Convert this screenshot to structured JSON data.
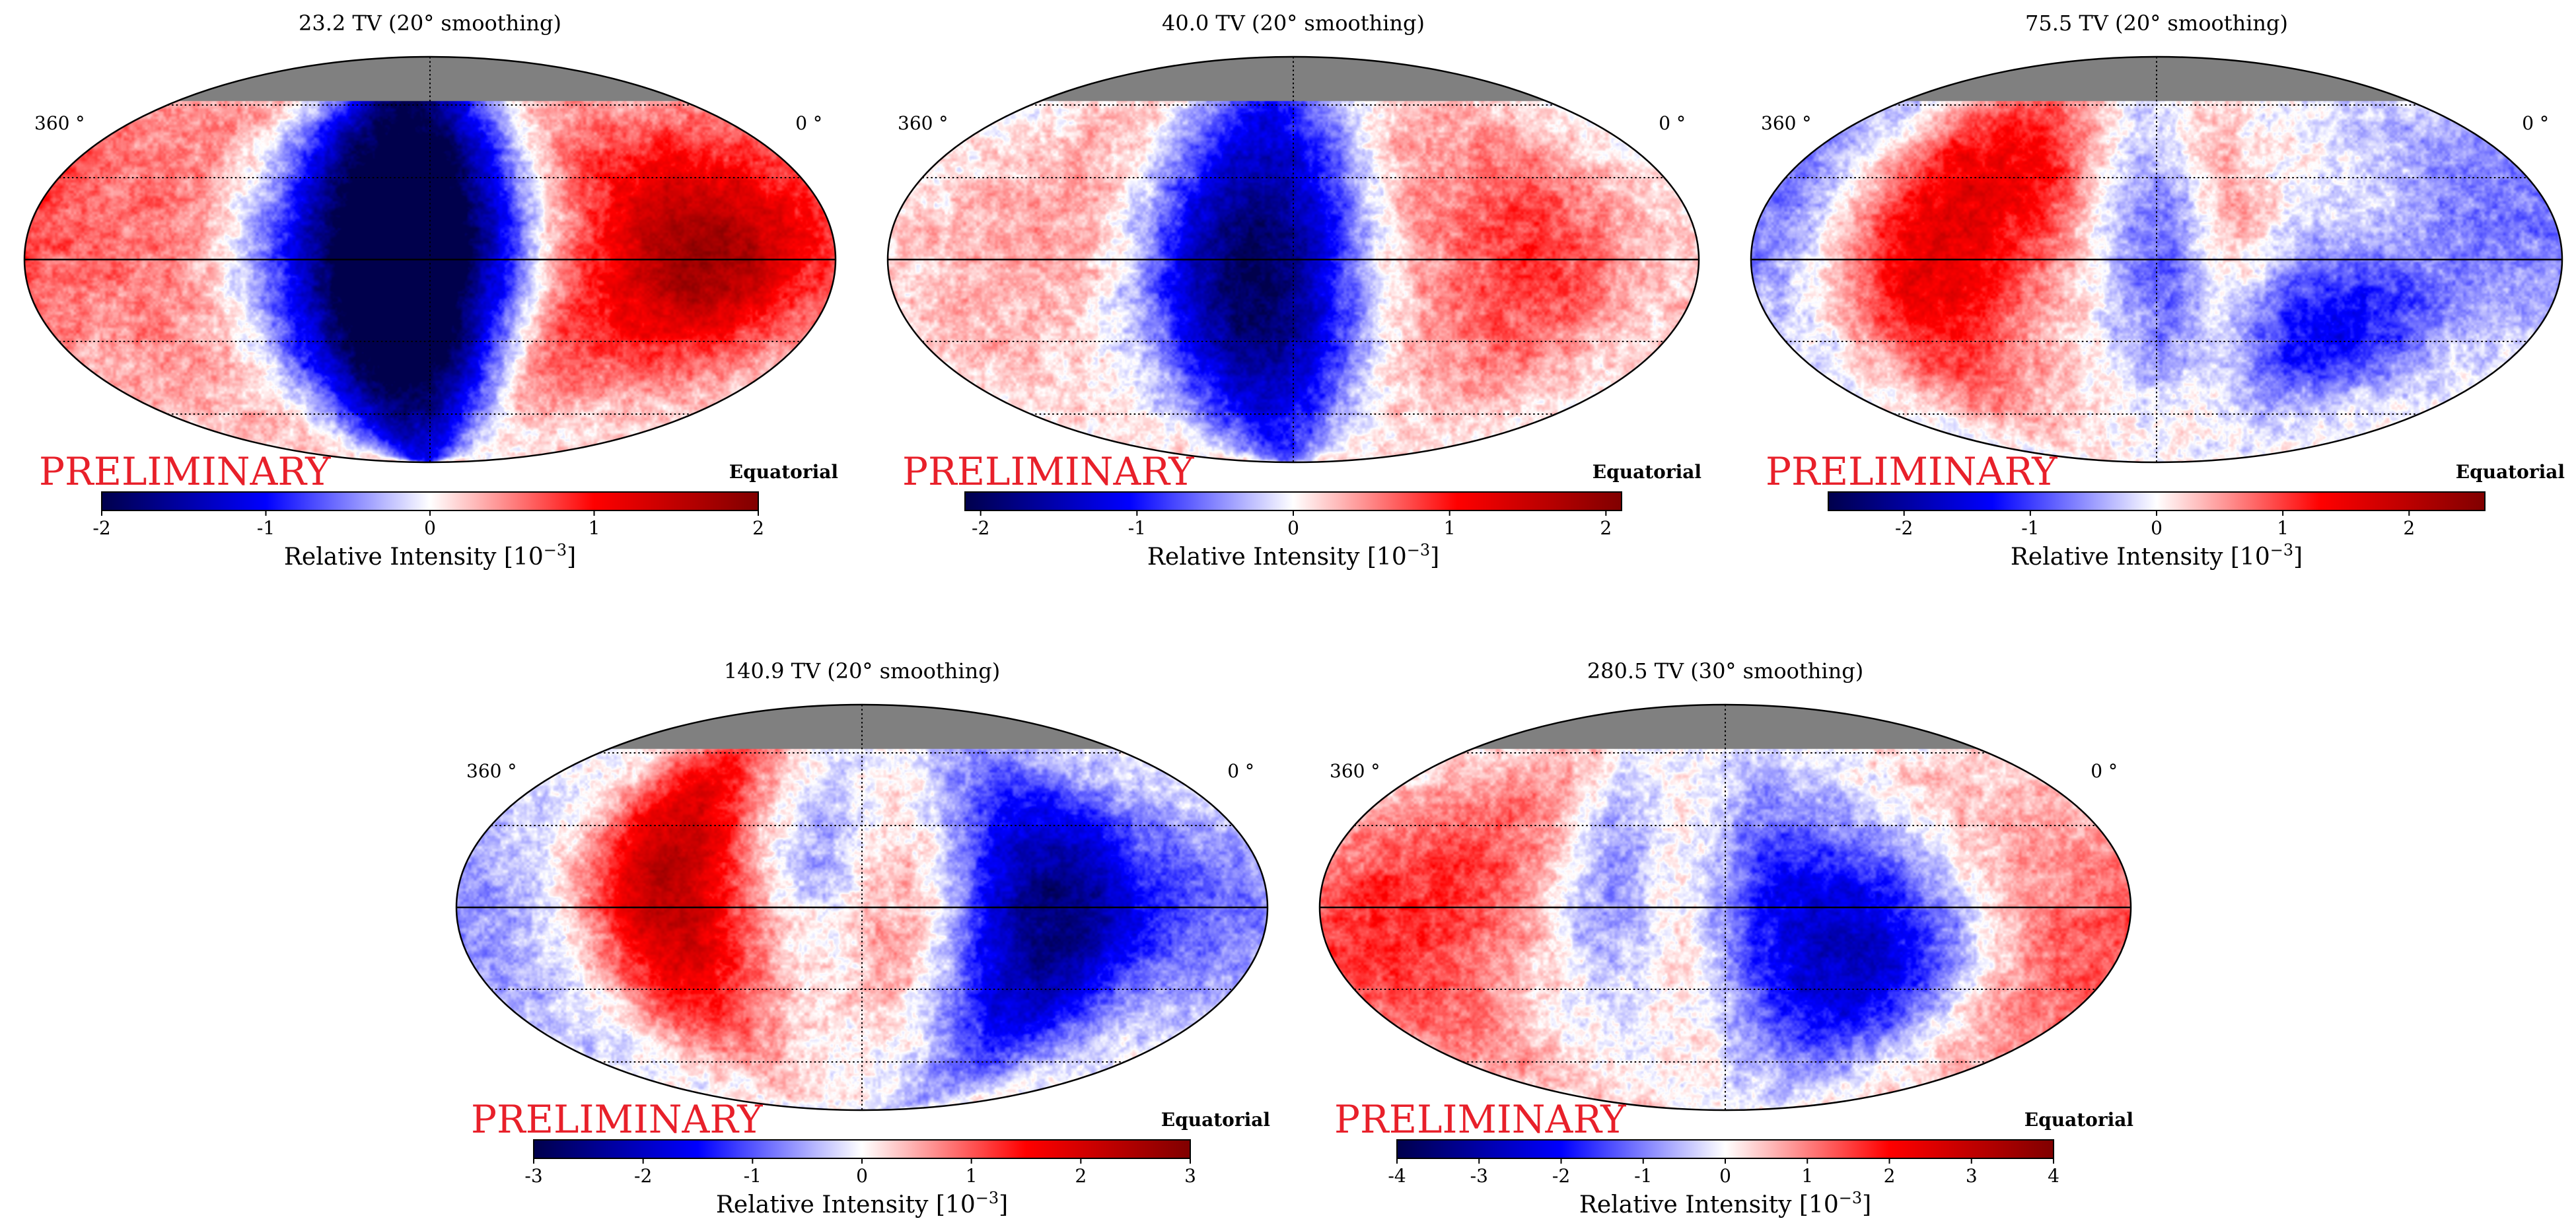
{
  "figure": {
    "watermark": "PRELIMINARY",
    "watermark_color": "#e8202a",
    "colorbar_label_prefix": "Relative Intensity [10",
    "colorbar_label_exp": "−3",
    "colorbar_label_suffix": "]",
    "colormap": [
      "#00004c",
      "#0000ff",
      "#ffffff",
      "#ff0000",
      "#800000"
    ],
    "masked_color": "#808080"
  },
  "chart_data": [
    {
      "type": "heatmap",
      "projection": "mollweide",
      "title": "23.2 TV (20° smoothing)",
      "coord_label": "Equatorial",
      "lon_left_label": "360 °",
      "lon_right_label": "0 °",
      "vmin": -2,
      "vmax": 2,
      "ticks": [
        "-2",
        "-1",
        "0",
        "1",
        "2"
      ],
      "tick_values": [
        -2,
        -1,
        0,
        1,
        2
      ],
      "features": [
        {
          "ra": 198,
          "dec": 10,
          "sra": 40,
          "sdec": 70,
          "amp": -2.3
        },
        {
          "ra": 180,
          "dec": -10,
          "sra": 35,
          "sdec": 45,
          "amp": -0.8
        },
        {
          "ra": 60,
          "dec": 0,
          "sra": 30,
          "sdec": 28,
          "amp": 1.55
        },
        {
          "ra": 125,
          "dec": -30,
          "sra": 25,
          "sdec": 28,
          "amp": 0.9
        },
        {
          "ra": 110,
          "dec": 35,
          "sra": 30,
          "sdec": 30,
          "amp": 0.55
        },
        {
          "ra": 300,
          "dec": 10,
          "sra": 60,
          "sdec": 60,
          "amp": 0.6
        },
        {
          "ra": 20,
          "dec": 30,
          "sra": 25,
          "sdec": 30,
          "amp": 0.4
        }
      ]
    },
    {
      "type": "heatmap",
      "projection": "mollweide",
      "title": "40.0 TV (20° smoothing)",
      "coord_label": "Equatorial",
      "lon_left_label": "360 °",
      "lon_right_label": "0 °",
      "vmin": -2.1,
      "vmax": 2.1,
      "ticks": [
        "-2",
        "-1",
        "0",
        "1",
        "2"
      ],
      "tick_values": [
        -2,
        -1,
        0,
        1,
        2
      ],
      "features": [
        {
          "ra": 195,
          "dec": 0,
          "sra": 40,
          "sdec": 70,
          "amp": -1.5
        },
        {
          "ra": 200,
          "dec": -10,
          "sra": 25,
          "sdec": 30,
          "amp": -0.6
        },
        {
          "ra": 70,
          "dec": 0,
          "sra": 30,
          "sdec": 40,
          "amp": 0.8
        },
        {
          "ra": 130,
          "dec": 10,
          "sra": 25,
          "sdec": 50,
          "amp": 0.55
        },
        {
          "ra": 270,
          "dec": 20,
          "sra": 30,
          "sdec": 40,
          "amp": 0.5
        },
        {
          "ra": 330,
          "dec": -20,
          "sra": 30,
          "sdec": 40,
          "amp": 0.25
        }
      ]
    },
    {
      "type": "heatmap",
      "projection": "mollweide",
      "title": "75.5 TV (20° smoothing)",
      "coord_label": "Equatorial",
      "lon_left_label": "360 °",
      "lon_right_label": "0 °",
      "vmin": -2.6,
      "vmax": 2.6,
      "ticks": [
        "-2",
        "-1",
        "0",
        "1",
        "2"
      ],
      "tick_values": [
        -2,
        -1,
        0,
        1,
        2
      ],
      "features": [
        {
          "ra": 270,
          "dec": 20,
          "sra": 35,
          "sdec": 45,
          "amp": 1.3
        },
        {
          "ra": 290,
          "dec": -20,
          "sra": 25,
          "sdec": 30,
          "amp": 0.6
        },
        {
          "ra": 225,
          "dec": 30,
          "sra": 25,
          "sdec": 20,
          "amp": 0.6
        },
        {
          "ra": 150,
          "dec": 0,
          "sra": 15,
          "sdec": 40,
          "amp": 0.7
        },
        {
          "ra": 100,
          "dec": -25,
          "sra": 35,
          "sdec": 20,
          "amp": -1.4
        },
        {
          "ra": 175,
          "dec": -5,
          "sra": 18,
          "sdec": 30,
          "amp": -0.8
        },
        {
          "ra": 200,
          "dec": 30,
          "sra": 20,
          "sdec": 25,
          "amp": -0.5
        },
        {
          "ra": 350,
          "dec": 20,
          "sra": 25,
          "sdec": 30,
          "amp": -0.7
        },
        {
          "ra": 40,
          "dec": 20,
          "sra": 25,
          "sdec": 30,
          "amp": -0.5
        }
      ]
    },
    {
      "type": "heatmap",
      "projection": "mollweide",
      "title": "140.9 TV (20° smoothing)",
      "coord_label": "Equatorial",
      "lon_left_label": "360 °",
      "lon_right_label": "0 °",
      "vmin": -3,
      "vmax": 3,
      "ticks": [
        "-3",
        "-2",
        "-1",
        "0",
        "1",
        "2",
        "3"
      ],
      "tick_values": [
        -3,
        -2,
        -1,
        0,
        1,
        2,
        3
      ],
      "features": [
        {
          "ra": 270,
          "dec": 20,
          "sra": 25,
          "sdec": 40,
          "amp": 2.0
        },
        {
          "ra": 250,
          "dec": -20,
          "sra": 25,
          "sdec": 30,
          "amp": 0.8
        },
        {
          "ra": 160,
          "dec": -5,
          "sra": 20,
          "sdec": 30,
          "amp": 0.8
        },
        {
          "ra": 100,
          "dec": -10,
          "sra": 30,
          "sdec": 40,
          "amp": -2.2
        },
        {
          "ra": 70,
          "dec": 10,
          "sra": 30,
          "sdec": 30,
          "amp": -0.8
        },
        {
          "ra": 200,
          "dec": 20,
          "sra": 20,
          "sdec": 20,
          "amp": -0.6
        },
        {
          "ra": 340,
          "dec": -10,
          "sra": 25,
          "sdec": 30,
          "amp": -0.5
        },
        {
          "ra": 20,
          "dec": 0,
          "sra": 20,
          "sdec": 30,
          "amp": -0.5
        }
      ]
    },
    {
      "type": "heatmap",
      "projection": "mollweide",
      "title": "280.5 TV (30° smoothing)",
      "coord_label": "Equatorial",
      "lon_left_label": "360 °",
      "lon_right_label": "0 °",
      "vmin": -4,
      "vmax": 4,
      "ticks": [
        "-4",
        "-3",
        "-2",
        "-1",
        "0",
        "1",
        "2",
        "3",
        "4"
      ],
      "tick_values": [
        -4,
        -3,
        -2,
        -1,
        0,
        1,
        2,
        3,
        4
      ],
      "features": [
        {
          "ra": 120,
          "dec": -20,
          "sra": 35,
          "sdec": 30,
          "amp": -2.6
        },
        {
          "ra": 160,
          "dec": 15,
          "sra": 25,
          "sdec": 30,
          "amp": -1.0
        },
        {
          "ra": 230,
          "dec": 10,
          "sra": 20,
          "sdec": 30,
          "amp": -1.0
        },
        {
          "ra": 330,
          "dec": -10,
          "sra": 30,
          "sdec": 40,
          "amp": 1.6
        },
        {
          "ra": 280,
          "dec": 20,
          "sra": 25,
          "sdec": 30,
          "amp": 1.0
        },
        {
          "ra": 200,
          "dec": 0,
          "sra": 15,
          "sdec": 40,
          "amp": 0.8
        },
        {
          "ra": 30,
          "dec": -20,
          "sra": 25,
          "sdec": 30,
          "amp": 1.0
        },
        {
          "ra": 60,
          "dec": 30,
          "sra": 25,
          "sdec": 30,
          "amp": 0.5
        }
      ]
    }
  ]
}
